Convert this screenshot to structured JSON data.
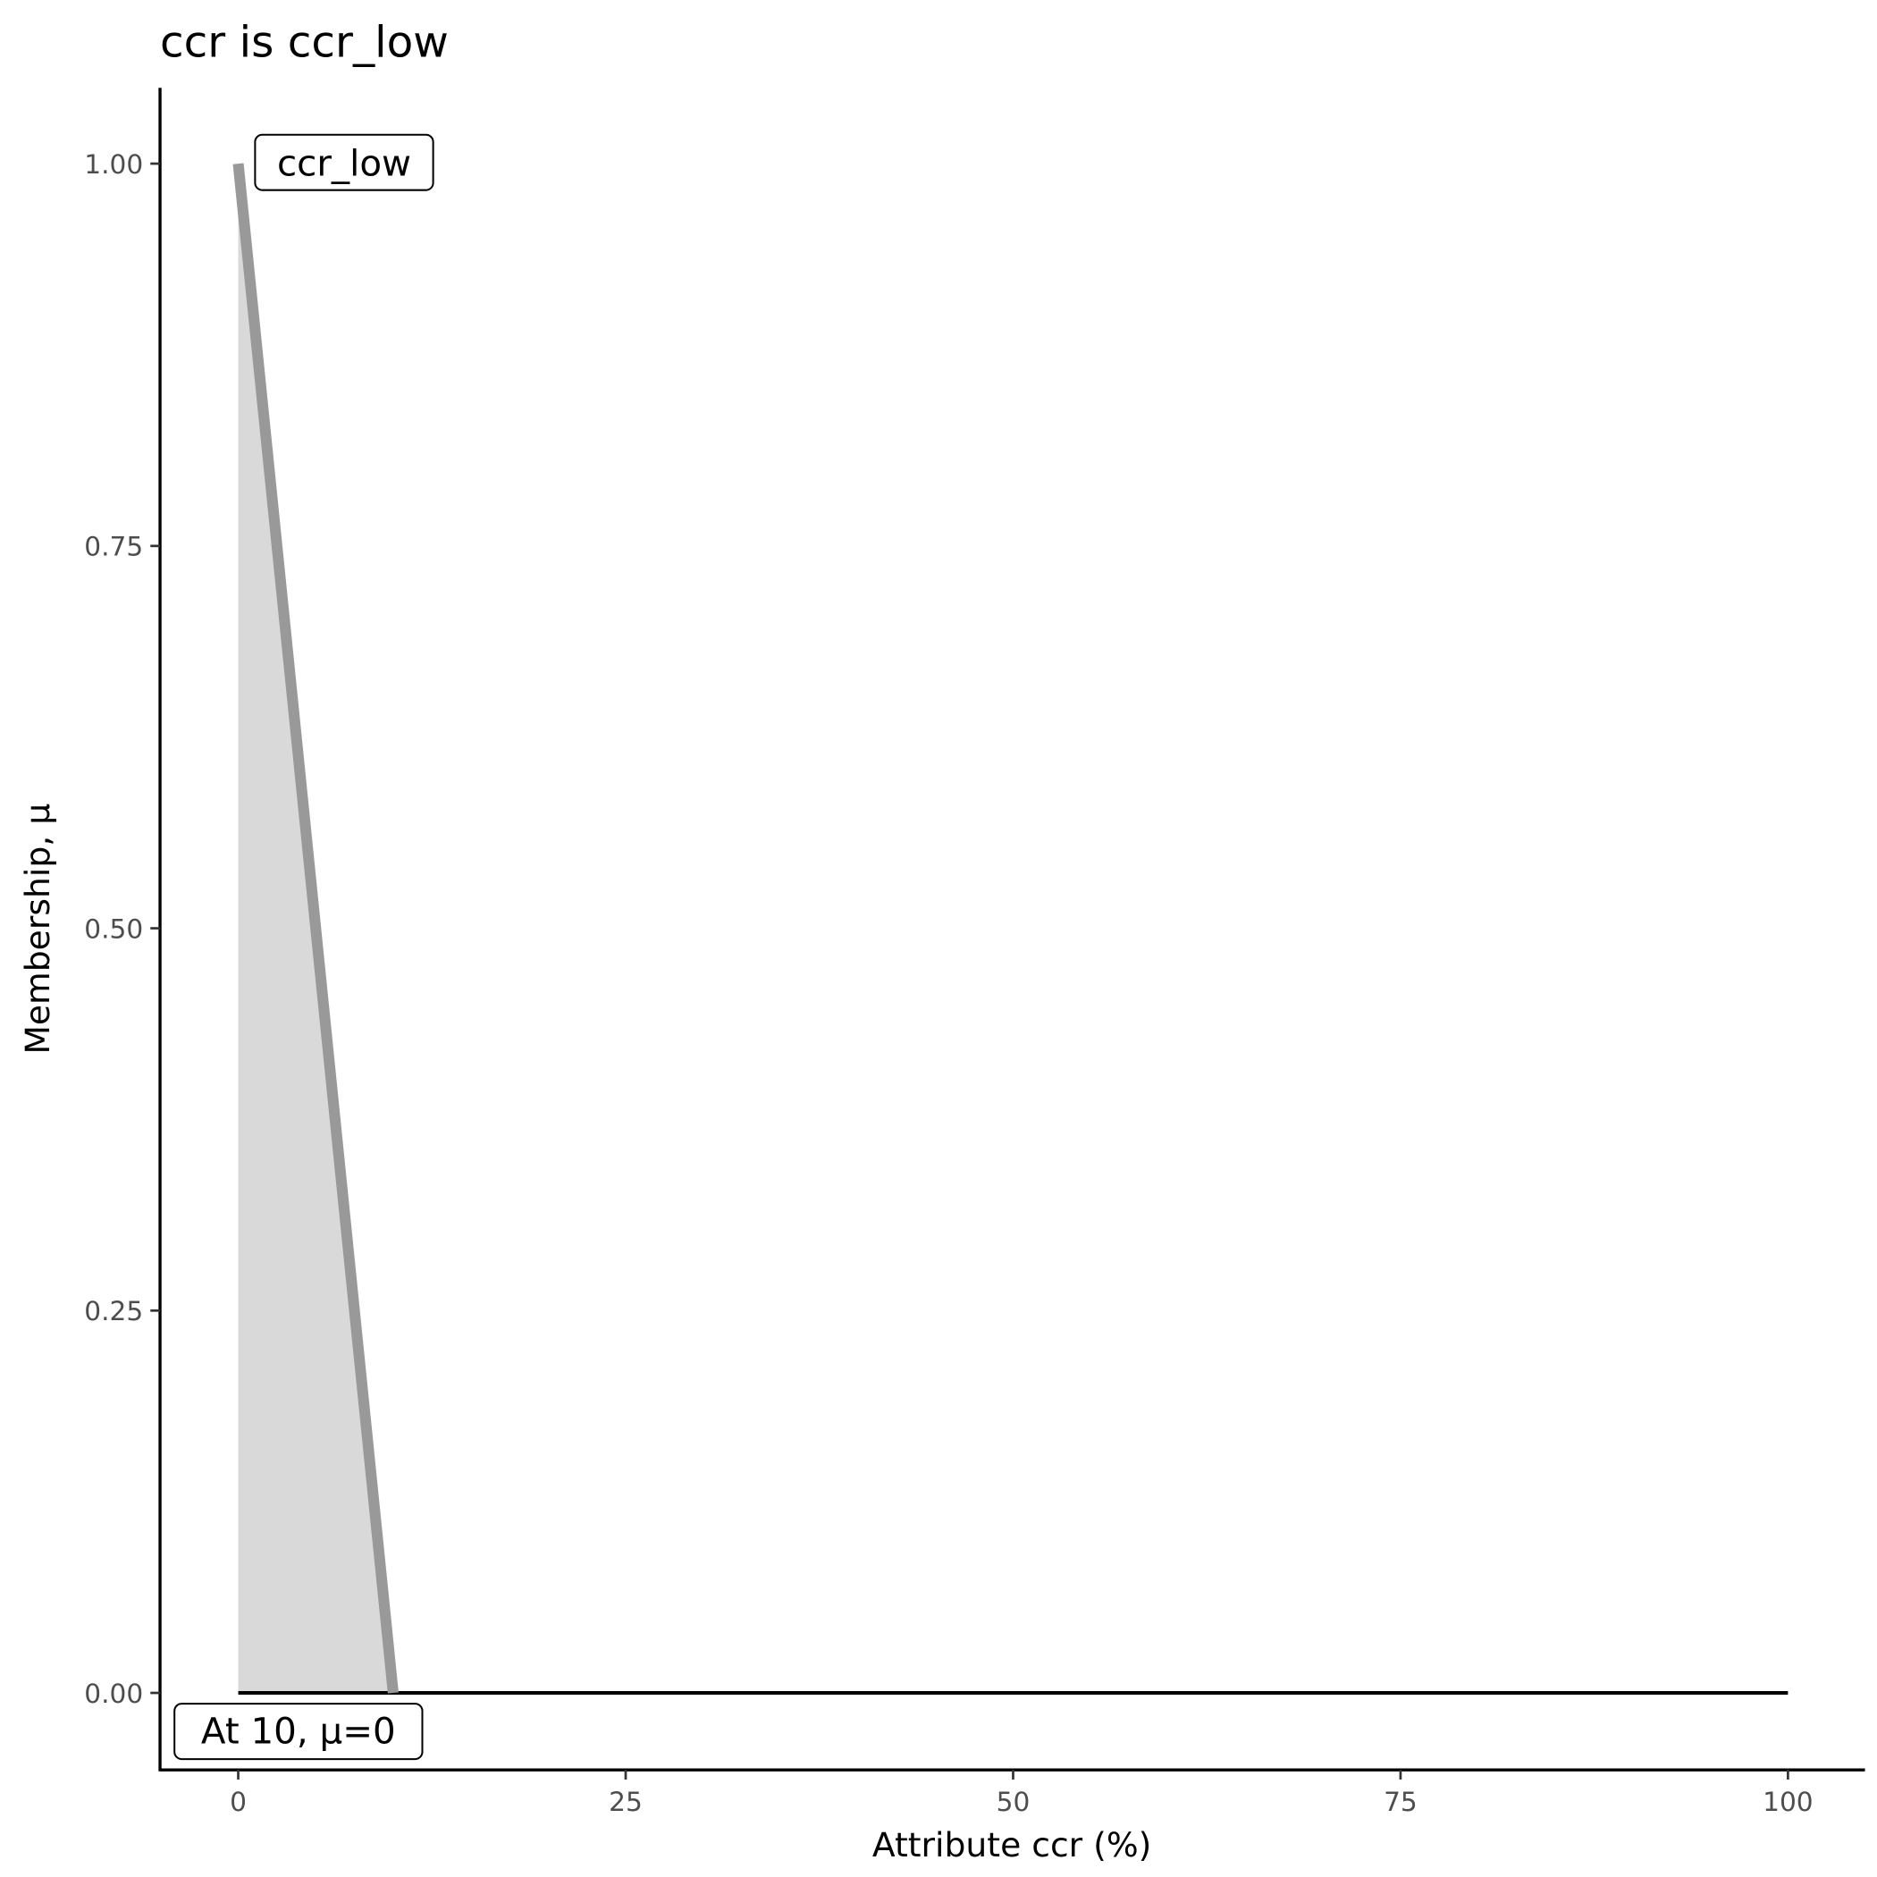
{
  "chart_data": {
    "type": "area",
    "title": "ccr is ccr_low",
    "xlabel": "Attribute ccr (%)",
    "ylabel": "Membership, μ",
    "xlim": [
      -5,
      105
    ],
    "ylim": [
      -0.05,
      1.05
    ],
    "x_ticks": [
      "0",
      "25",
      "50",
      "75",
      "100"
    ],
    "y_ticks": [
      "0.00",
      "0.25",
      "0.50",
      "0.75",
      "1.00"
    ],
    "grid": false,
    "membership": {
      "x": [
        0,
        10
      ],
      "y": [
        1,
        0
      ]
    },
    "baseline": {
      "x": [
        0,
        100
      ],
      "y": [
        0,
        0
      ]
    },
    "annotations": [
      {
        "text": "ccr_low",
        "x": 0,
        "y": 1
      },
      {
        "text": "At 10, μ=0",
        "x": 10,
        "y": 0
      }
    ],
    "colors": {
      "line": "#999999",
      "fill": "#d9d9d9",
      "baseline": "#000000"
    }
  }
}
